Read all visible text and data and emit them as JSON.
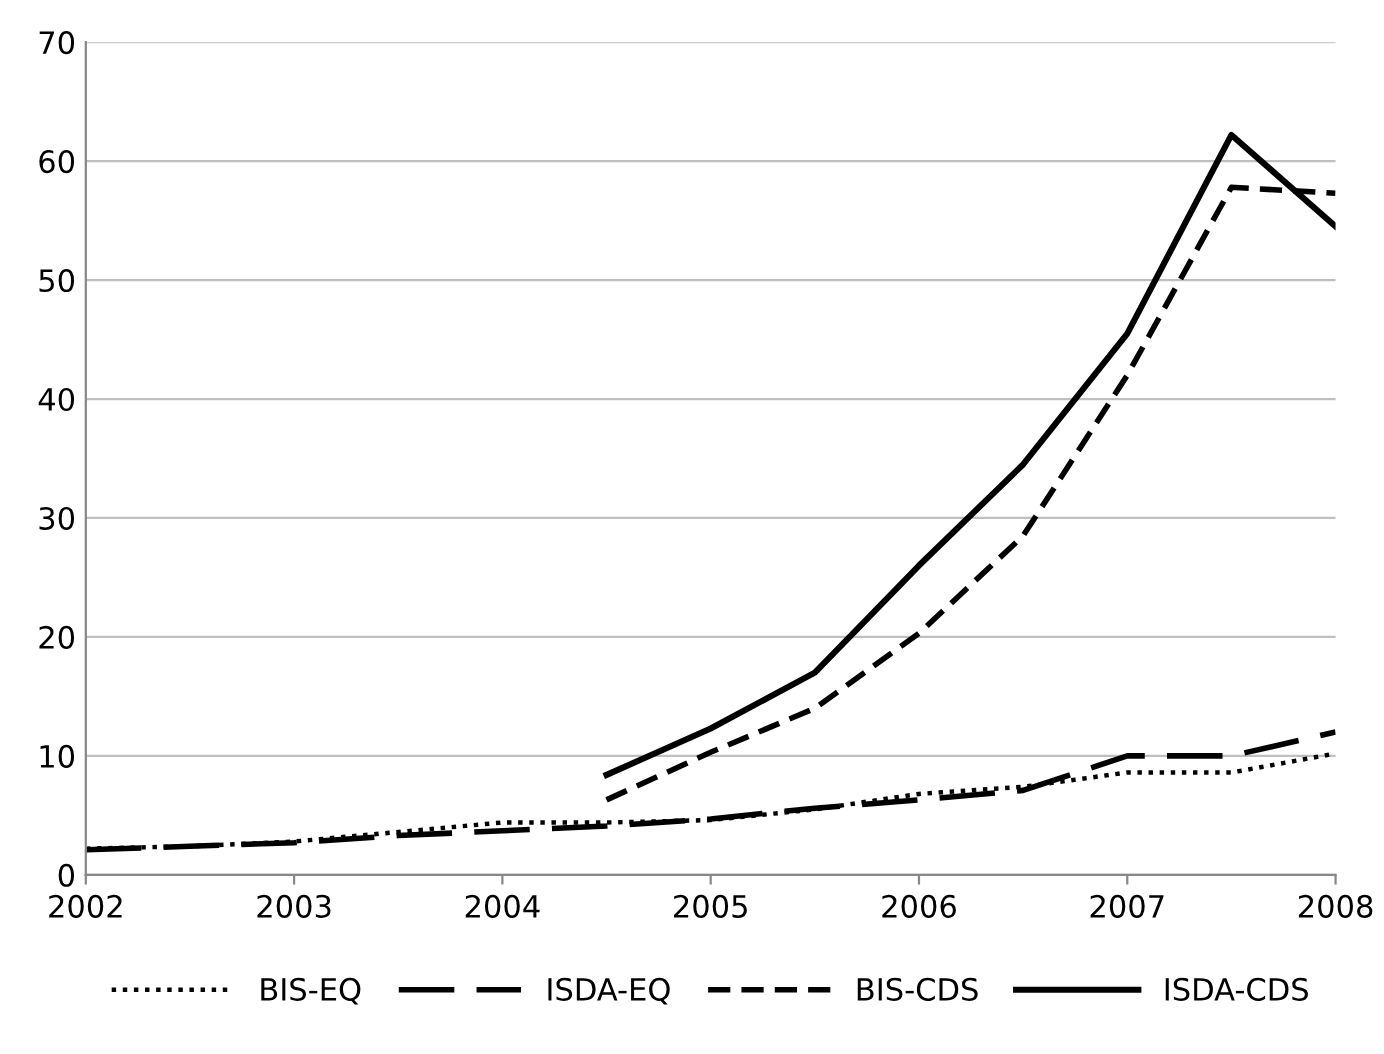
{
  "chart_data": {
    "type": "line",
    "series": [
      {
        "name": "BIS-EQ",
        "color": "#000000",
        "line_style": "dotted",
        "x": [
          2002,
          2002.5,
          2003,
          2003.5,
          2004,
          2004.5,
          2005,
          2005.5,
          2006,
          2006.5,
          2007,
          2007.5,
          2008
        ],
        "values": [
          2.2,
          2.4,
          2.8,
          3.6,
          4.4,
          4.4,
          4.6,
          5.5,
          6.8,
          7.4,
          8.6,
          8.6,
          10.2
        ]
      },
      {
        "name": "ISDA-EQ",
        "color": "#000000",
        "line_style": "longdash",
        "x": [
          2002,
          2002.5,
          2003,
          2003.5,
          2004,
          2004.5,
          2005,
          2005.5,
          2006,
          2006.5,
          2007,
          2007.5,
          2008
        ],
        "values": [
          2.1,
          2.4,
          2.7,
          3.3,
          3.7,
          4.1,
          4.7,
          5.6,
          6.3,
          7.1,
          10.0,
          10.0,
          12.0
        ]
      },
      {
        "name": "BIS-CDS",
        "color": "#000000",
        "line_style": "dashed",
        "x": [
          2004.5,
          2005,
          2005.5,
          2006,
          2006.5,
          2007,
          2007.5,
          2008
        ],
        "values": [
          6.3,
          10.3,
          14,
          20.3,
          28.5,
          42,
          57.8,
          57.3
        ]
      },
      {
        "name": "ISDA-CDS",
        "color": "#000000",
        "line_style": "solid",
        "x": [
          2004.5,
          2005,
          2005.5,
          2006,
          2006.5,
          2007,
          2007.5,
          2008
        ],
        "values": [
          8.4,
          12.3,
          17,
          26,
          34.5,
          45.5,
          62.2,
          54.5
        ]
      }
    ],
    "xlim": [
      2002,
      2008
    ],
    "xticks": [
      2002,
      2003,
      2004,
      2005,
      2006,
      2007,
      2008
    ],
    "ylim": [
      0,
      70
    ],
    "yticks": [
      0,
      10,
      20,
      30,
      40,
      50,
      60,
      70
    ],
    "grid": "y",
    "legend": "bottom",
    "marker": "none"
  }
}
